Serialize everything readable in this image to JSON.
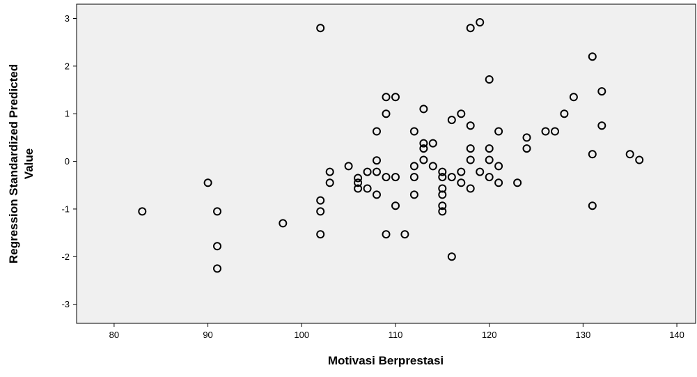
{
  "chart_data": {
    "type": "scatter",
    "title": "",
    "xlabel": "Motivasi Berprestasi",
    "ylabel_lines": [
      "Regression Standardized Predicted",
      "Value"
    ],
    "xlim": [
      76,
      142
    ],
    "ylim": [
      -3.4,
      3.3
    ],
    "xticks": [
      80,
      90,
      100,
      110,
      120,
      130,
      140
    ],
    "yticks": [
      -3,
      -2,
      -1,
      0,
      1,
      2,
      3
    ],
    "grid": false,
    "marker": "hollow-circle",
    "plot_background": "#f0f0f0",
    "marker_color": "#000000",
    "points": [
      [
        83,
        -1.05
      ],
      [
        90,
        -0.45
      ],
      [
        91,
        -1.05
      ],
      [
        91,
        -1.78
      ],
      [
        91,
        -2.25
      ],
      [
        98,
        -1.3
      ],
      [
        102,
        2.8
      ],
      [
        102,
        -0.82
      ],
      [
        102,
        -1.05
      ],
      [
        102,
        -1.53
      ],
      [
        103,
        -0.22
      ],
      [
        103,
        -0.45
      ],
      [
        105,
        -0.1
      ],
      [
        106,
        -0.35
      ],
      [
        106,
        -0.45
      ],
      [
        106,
        -0.57
      ],
      [
        107,
        -0.22
      ],
      [
        107,
        -0.57
      ],
      [
        108,
        0.02
      ],
      [
        108,
        -0.22
      ],
      [
        108,
        -0.7
      ],
      [
        108,
        0.63
      ],
      [
        109,
        1.35
      ],
      [
        109,
        1.0
      ],
      [
        109,
        -0.33
      ],
      [
        109,
        -1.53
      ],
      [
        110,
        1.35
      ],
      [
        110,
        -0.33
      ],
      [
        110,
        -0.93
      ],
      [
        111,
        -1.53
      ],
      [
        112,
        0.63
      ],
      [
        112,
        -0.1
      ],
      [
        112,
        -0.33
      ],
      [
        112,
        -0.7
      ],
      [
        113,
        1.1
      ],
      [
        113,
        0.38
      ],
      [
        113,
        0.27
      ],
      [
        113,
        0.03
      ],
      [
        114,
        0.38
      ],
      [
        114,
        -0.1
      ],
      [
        115,
        -0.22
      ],
      [
        115,
        -0.33
      ],
      [
        115,
        -0.57
      ],
      [
        115,
        -0.7
      ],
      [
        115,
        -0.93
      ],
      [
        115,
        -1.05
      ],
      [
        116,
        0.87
      ],
      [
        116,
        -0.33
      ],
      [
        116,
        -2.0
      ],
      [
        117,
        1.0
      ],
      [
        117,
        -0.22
      ],
      [
        117,
        -0.45
      ],
      [
        118,
        2.8
      ],
      [
        118,
        0.75
      ],
      [
        118,
        0.27
      ],
      [
        118,
        0.03
      ],
      [
        118,
        -0.57
      ],
      [
        119,
        2.92
      ],
      [
        119,
        -0.22
      ],
      [
        120,
        1.72
      ],
      [
        120,
        0.27
      ],
      [
        120,
        0.03
      ],
      [
        120,
        -0.33
      ],
      [
        121,
        0.63
      ],
      [
        121,
        -0.1
      ],
      [
        121,
        -0.45
      ],
      [
        123,
        -0.45
      ],
      [
        124,
        0.5
      ],
      [
        124,
        0.27
      ],
      [
        126,
        0.63
      ],
      [
        127,
        0.63
      ],
      [
        128,
        1.0
      ],
      [
        129,
        1.35
      ],
      [
        131,
        2.2
      ],
      [
        131,
        0.15
      ],
      [
        131,
        -0.93
      ],
      [
        132,
        1.47
      ],
      [
        132,
        0.75
      ],
      [
        135,
        0.15
      ],
      [
        136,
        0.03
      ]
    ]
  }
}
